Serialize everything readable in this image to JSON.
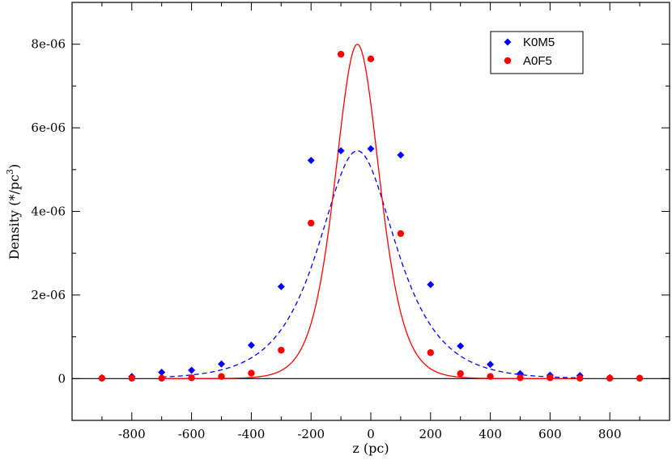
{
  "chart_data": {
    "type": "scatter",
    "xlabel": "z (pc)",
    "ylabel": {
      "main": "Density (*/pc",
      "sup": "3",
      "close": ")"
    },
    "xlim": [
      -1000,
      1000
    ],
    "ylim": [
      -1e-06,
      9e-06
    ],
    "x_ticks": [
      -800,
      -600,
      -400,
      -200,
      0,
      200,
      400,
      600,
      800
    ],
    "x_tick_labels": [
      "-800",
      "-600",
      "-400",
      "-200",
      "0",
      "200",
      "400",
      "600",
      "800"
    ],
    "y_ticks": [
      0,
      2e-06,
      4e-06,
      6e-06,
      8e-06
    ],
    "y_tick_labels": [
      "0",
      "2e-06",
      "4e-06",
      "6e-06",
      "8e-06"
    ],
    "grid": false,
    "zero_line": true,
    "legend_placement": "top-right",
    "series": [
      {
        "name": "K0M5",
        "marker": "diamond",
        "color": "#0000ff",
        "points": [
          [
            -900,
            2e-08
          ],
          [
            -800,
            5e-08
          ],
          [
            -700,
            1.5e-07
          ],
          [
            -600,
            2e-07
          ],
          [
            -500,
            3.5e-07
          ],
          [
            -400,
            8e-07
          ],
          [
            -300,
            2.2e-06
          ],
          [
            -200,
            5.22e-06
          ],
          [
            -100,
            5.45e-06
          ],
          [
            0,
            5.5e-06
          ],
          [
            100,
            5.35e-06
          ],
          [
            200,
            2.25e-06
          ],
          [
            300,
            7.8e-07
          ],
          [
            400,
            3.4e-07
          ],
          [
            500,
            1.2e-07
          ],
          [
            600,
            8e-08
          ],
          [
            700,
            7e-08
          ],
          [
            800,
            2e-08
          ],
          [
            900,
            1e-08
          ]
        ],
        "fit": {
          "style": "dashed",
          "peak": 5.45e-06,
          "center": -45,
          "scale": 115,
          "model": "sech",
          "range": [
            -700,
            700
          ]
        }
      },
      {
        "name": "A0F5",
        "marker": "circle",
        "color": "#ff0000",
        "points": [
          [
            -900,
            1e-08
          ],
          [
            -800,
            1e-08
          ],
          [
            -700,
            1e-08
          ],
          [
            -600,
            2e-08
          ],
          [
            -500,
            5e-08
          ],
          [
            -400,
            1.3e-07
          ],
          [
            -300,
            6.8e-07
          ],
          [
            -200,
            3.72e-06
          ],
          [
            -100,
            7.76e-06
          ],
          [
            0,
            7.65e-06
          ],
          [
            100,
            3.47e-06
          ],
          [
            200,
            6.2e-07
          ],
          [
            300,
            1.2e-07
          ],
          [
            400,
            5e-08
          ],
          [
            500,
            2e-08
          ],
          [
            600,
            2e-08
          ],
          [
            700,
            1e-08
          ],
          [
            800,
            1e-08
          ],
          [
            900,
            1e-08
          ]
        ],
        "fit": {
          "style": "solid",
          "peak": 8e-06,
          "center": -45,
          "scale": 100,
          "model": "sech2",
          "range": [
            -700,
            700
          ]
        }
      }
    ]
  }
}
